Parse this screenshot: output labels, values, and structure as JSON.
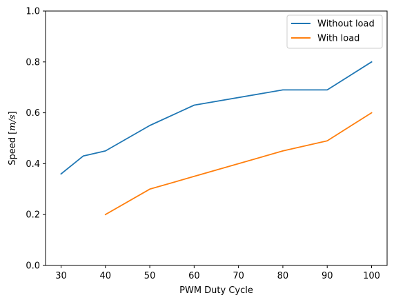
{
  "chart_data": {
    "type": "line",
    "title": "",
    "xlabel": "PWM Duty Cycle",
    "ylabel": {
      "prefix": "Speed [",
      "unit": "m/s",
      "suffix": "]"
    },
    "xlim": [
      26.5,
      103.5
    ],
    "ylim": [
      0,
      1
    ],
    "xticks": [
      30,
      40,
      50,
      60,
      70,
      80,
      90,
      100
    ],
    "xtick_labels": [
      "30",
      "40",
      "50",
      "60",
      "70",
      "80",
      "90",
      "100"
    ],
    "yticks": [
      0,
      0.2,
      0.4,
      0.6,
      0.8,
      1.0
    ],
    "ytick_labels": [
      "0.0",
      "0.2",
      "0.4",
      "0.6",
      "0.8",
      "1.0"
    ],
    "grid": false,
    "legend_position": "top-right",
    "series": [
      {
        "name": "Without load",
        "color": "#1f77b4",
        "x": [
          30,
          35,
          40,
          50,
          60,
          80,
          90,
          100
        ],
        "y": [
          0.36,
          0.43,
          0.45,
          0.55,
          0.63,
          0.69,
          0.69,
          0.8
        ]
      },
      {
        "name": "With load",
        "color": "#ff7f0e",
        "x": [
          40,
          50,
          60,
          80,
          90,
          100
        ],
        "y": [
          0.2,
          0.3,
          0.35,
          0.45,
          0.49,
          0.6
        ]
      }
    ]
  }
}
